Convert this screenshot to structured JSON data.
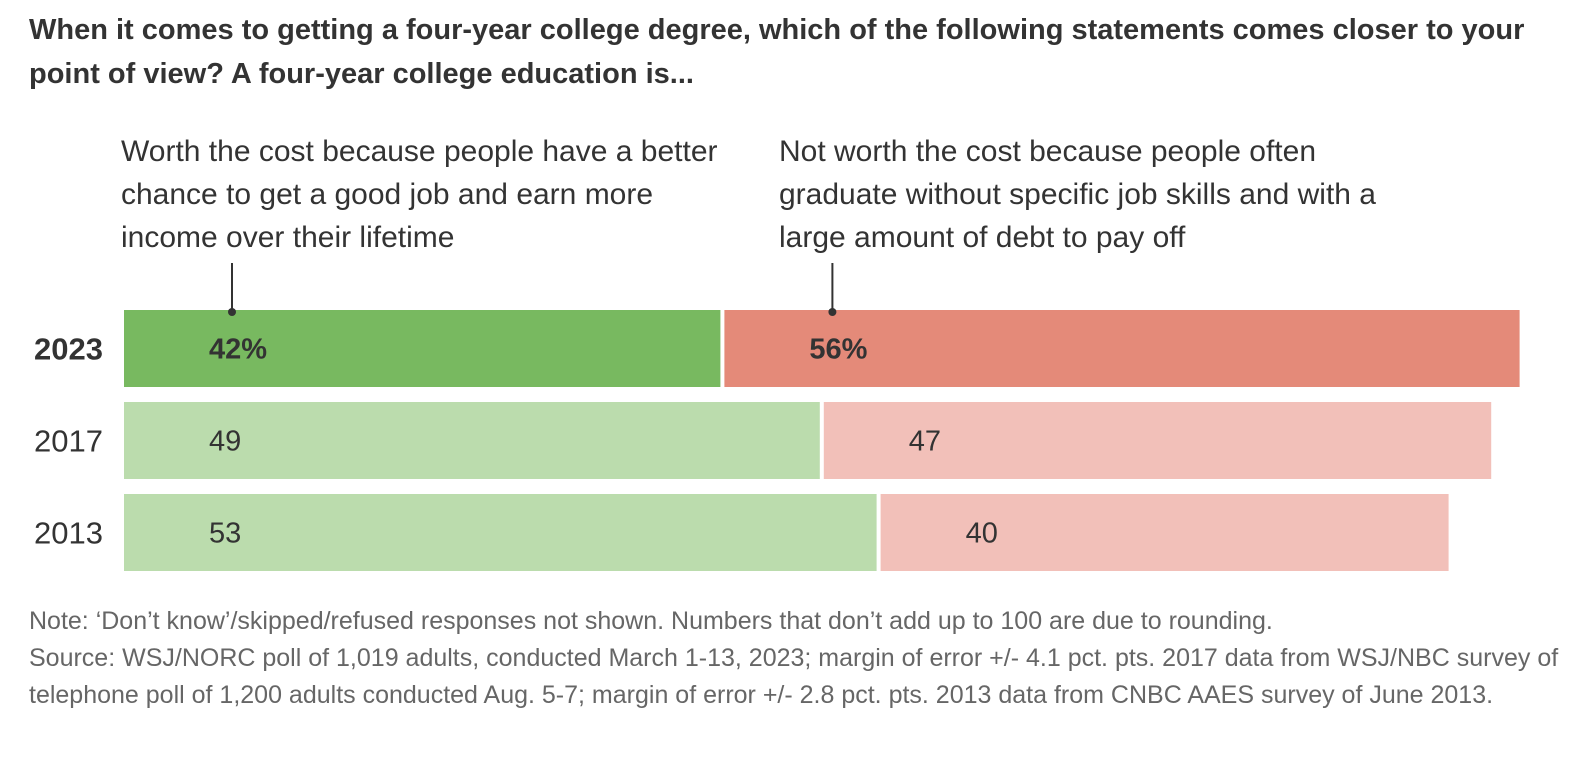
{
  "title": "When it comes to getting a four-year college degree, which of the following statements comes closer to your point of view? A four-year college education is...",
  "chart_data": {
    "type": "bar",
    "stacked": true,
    "orientation": "horizontal",
    "categories": [
      "2023",
      "2017",
      "2013"
    ],
    "series": [
      {
        "name": "Worth the cost because people have a better chance to get a good job and earn more income over their lifetime",
        "values": [
          42,
          49,
          53
        ],
        "labels": [
          "42%",
          "49",
          "53"
        ],
        "color": "#78b960",
        "color_light": "#bbdcad"
      },
      {
        "name": "Not worth the cost because people often graduate without specific job skills and with a large amount of debt to pay off",
        "values": [
          56,
          47,
          40
        ],
        "labels": [
          "56%",
          "47",
          "40"
        ],
        "color": "#e48a79",
        "color_light": "#f2c0b9"
      }
    ],
    "highlight_category": "2023",
    "xlim": [
      0,
      100
    ],
    "grid": false,
    "legend": "direct labels above bars"
  },
  "notes": {
    "note": "Note: ‘Don’t know’/skipped/refused responses not shown. Numbers that don’t add up to 100 are due to rounding.",
    "source": "Source: WSJ/NORC poll of 1,019 adults, conducted March 1-13, 2023; margin of error +/- 4.1 pct. pts. 2017 data from WSJ/NBC survey of telephone poll of 1,200 adults conducted Aug. 5-7; margin of error +/- 2.8 pct. pts. 2013 data from CNBC AAES survey of June 2013."
  }
}
